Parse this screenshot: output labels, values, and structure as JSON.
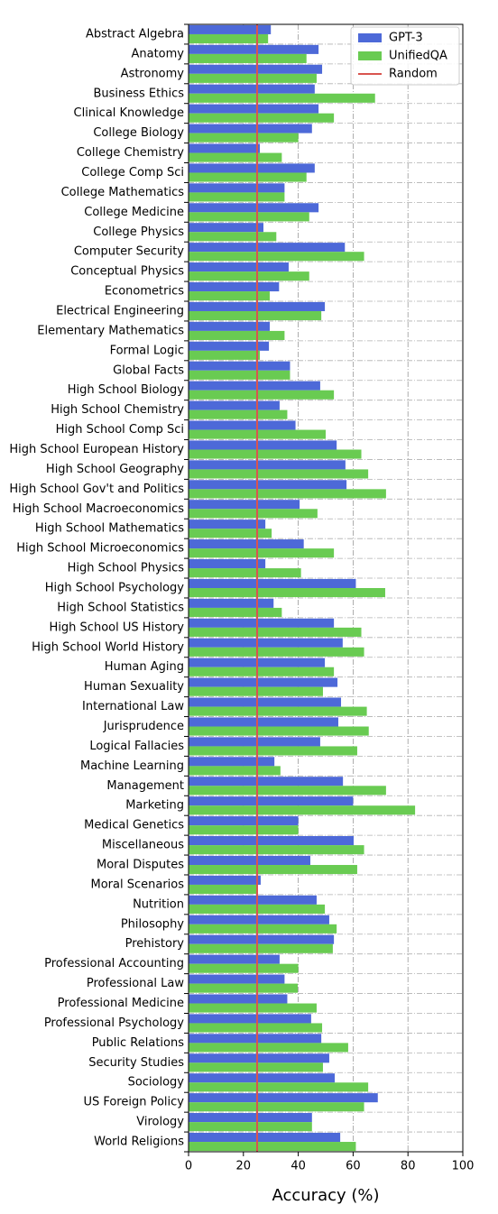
{
  "chart_data": {
    "type": "hbar",
    "xlabel": "Accuracy (%)",
    "xlim": [
      0,
      100
    ],
    "xticks": [
      0,
      20,
      40,
      60,
      80,
      100
    ],
    "grid": true,
    "legend": "upper right",
    "categories": [
      "Abstract Algebra",
      "Anatomy",
      "Astronomy",
      "Business Ethics",
      "Clinical Knowledge",
      "College Biology",
      "College Chemistry",
      "College Comp Sci",
      "College Mathematics",
      "College Medicine",
      "College Physics",
      "Computer Security",
      "Conceptual Physics",
      "Econometrics",
      "Electrical Engineering",
      "Elementary Mathematics",
      "Formal Logic",
      "Global Facts",
      "High School Biology",
      "High School Chemistry",
      "High School Comp Sci",
      "High School European History",
      "High School Geography",
      "High School Gov't and Politics",
      "High School Macroeconomics",
      "High School Mathematics",
      "High School Microeconomics",
      "High School Physics",
      "High School Psychology",
      "High School Statistics",
      "High School US History",
      "High School World History",
      "Human Aging",
      "Human Sexuality",
      "International Law",
      "Jurisprudence",
      "Logical Fallacies",
      "Machine Learning",
      "Management",
      "Marketing",
      "Medical Genetics",
      "Miscellaneous",
      "Moral Disputes",
      "Moral Scenarios",
      "Nutrition",
      "Philosophy",
      "Prehistory",
      "Professional Accounting",
      "Professional Law",
      "Professional Medicine",
      "Professional Psychology",
      "Public Relations",
      "Security Studies",
      "Sociology",
      "US Foreign Policy",
      "Virology",
      "World Religions"
    ],
    "series": [
      {
        "name": "GPT-3",
        "color": "#4d69d8",
        "values": [
          30,
          47.4,
          48.7,
          46,
          47.4,
          45,
          26,
          46,
          35,
          47.4,
          27.3,
          57,
          36.5,
          33,
          49.7,
          29.6,
          29.3,
          37,
          48,
          33.2,
          39,
          54,
          57.2,
          57.6,
          40.5,
          28,
          42,
          28,
          61,
          31,
          53,
          56.2,
          49.7,
          54.3,
          55.6,
          54.6,
          48,
          31.3,
          56.3,
          60,
          40,
          60.2,
          44.4,
          26.3,
          46.7,
          51.3,
          53,
          33.2,
          35,
          36,
          44.7,
          48.4,
          51.3,
          53.3,
          69,
          45,
          55.3
        ]
      },
      {
        "name": "UnifiedQA",
        "color": "#69cb52",
        "values": [
          29,
          43,
          46.7,
          68,
          53,
          40,
          34,
          43,
          35,
          44,
          32,
          64,
          44,
          29.6,
          48.4,
          35,
          26,
          37,
          53,
          36,
          50,
          63,
          65.5,
          72,
          47,
          30.3,
          53,
          41,
          71.7,
          34,
          63,
          64,
          53,
          49,
          65,
          65.7,
          61.5,
          33.5,
          72,
          82.6,
          40,
          64,
          61.5,
          24.7,
          49.7,
          54,
          52.6,
          40,
          39.8,
          46.7,
          48.7,
          58.2,
          49,
          65.5,
          64,
          45,
          61
        ]
      }
    ],
    "baseline": {
      "name": "Random",
      "color": "#d9544f",
      "value": 25
    }
  }
}
